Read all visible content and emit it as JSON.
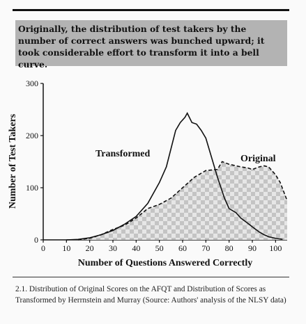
{
  "callout": "Originally, the distribution of test takers by the number of correct answers was bunched upward; it took considerable effort to transform it into a bell curve.",
  "caption": "2.1. Distribution of Original Scores on the AFQT and Distribution of Scores as Transformed by Herrnstein and Murray (Source: Authors' analysis of the NLSY data)",
  "chart_data": {
    "type": "line",
    "x_label": "Number of Questions Answered Correctly",
    "y_label": "Number of Test Takers",
    "xlim": [
      0,
      105
    ],
    "ylim": [
      0,
      300
    ],
    "xticks": [
      0,
      10,
      20,
      30,
      40,
      50,
      60,
      70,
      80,
      90,
      100
    ],
    "yticks": [
      0,
      100,
      200,
      300
    ],
    "series": [
      {
        "name": "Transformed",
        "color": "#111111",
        "style": "solid",
        "x": [
          10,
          15,
          20,
          25,
          30,
          35,
          40,
          45,
          50,
          53,
          55,
          57,
          59,
          61,
          62,
          64,
          66,
          68,
          70,
          72,
          75,
          78,
          80,
          83,
          85,
          88,
          90,
          93,
          95,
          97,
          100,
          103
        ],
        "values": [
          0,
          1,
          4,
          10,
          18,
          30,
          45,
          70,
          110,
          140,
          175,
          210,
          225,
          235,
          243,
          225,
          222,
          210,
          195,
          165,
          120,
          80,
          60,
          52,
          42,
          32,
          25,
          15,
          10,
          6,
          3,
          1
        ]
      },
      {
        "name": "Original",
        "color": "#111111",
        "style": "dashed",
        "fill": true,
        "x": [
          15,
          20,
          25,
          30,
          35,
          40,
          45,
          50,
          55,
          60,
          65,
          70,
          75,
          77,
          80,
          83,
          85,
          88,
          90,
          93,
          95,
          97,
          100,
          102,
          105
        ],
        "values": [
          0,
          3,
          10,
          20,
          28,
          42,
          60,
          68,
          80,
          100,
          120,
          133,
          135,
          150,
          145,
          142,
          140,
          138,
          135,
          140,
          142,
          140,
          125,
          110,
          75
        ]
      }
    ]
  }
}
